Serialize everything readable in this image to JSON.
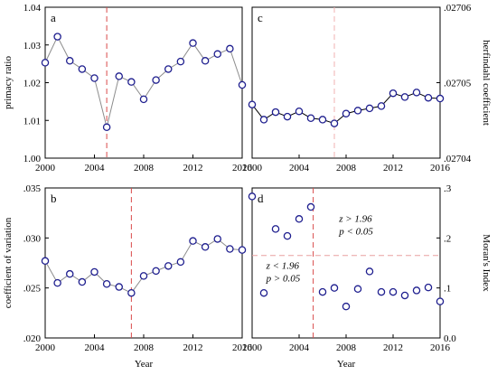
{
  "chart_data": [
    {
      "id": "a",
      "type": "line",
      "panel_label": "a",
      "ylabel": "primacy ratio",
      "xlabel": "",
      "y_axis_side": "left",
      "xlim": [
        2000,
        2016
      ],
      "ylim": [
        1.0,
        1.04
      ],
      "xticks": [
        2000,
        2004,
        2008,
        2012,
        2016
      ],
      "xtick_labels": [
        "2000",
        "2004",
        "2008",
        "2012",
        "2016"
      ],
      "yticks": [
        1.0,
        1.01,
        1.02,
        1.03,
        1.04
      ],
      "ytick_labels": [
        "1.00",
        "1.01",
        "1.02",
        "1.03",
        "1.04"
      ],
      "series": [
        {
          "x": [
            2000,
            2001,
            2002,
            2003,
            2004,
            2005,
            2006,
            2007,
            2008,
            2009,
            2010,
            2011,
            2012,
            2013,
            2014,
            2015,
            2016
          ],
          "values": [
            1.0253,
            1.0322,
            1.0258,
            1.0236,
            1.0212,
            1.0082,
            1.0217,
            1.0202,
            1.0156,
            1.0207,
            1.0236,
            1.0256,
            1.0305,
            1.0258,
            1.0276,
            1.029,
            1.0194
          ]
        }
      ],
      "line_color": "#8c8c8c",
      "vlines": [
        2005
      ],
      "hlines": [],
      "grid": false,
      "legend": "none"
    },
    {
      "id": "b",
      "type": "line",
      "panel_label": "b",
      "ylabel": "coefficient of variation",
      "xlabel": "Year",
      "y_axis_side": "left",
      "xlim": [
        2000,
        2016
      ],
      "ylim": [
        0.02,
        0.035
      ],
      "xticks": [
        2000,
        2004,
        2008,
        2012,
        2016
      ],
      "xtick_labels": [
        "2000",
        "2004",
        "2008",
        "2012",
        "2016"
      ],
      "yticks": [
        0.02,
        0.025,
        0.03,
        0.035
      ],
      "ytick_labels": [
        ".020",
        ".025",
        ".030",
        ".035"
      ],
      "series": [
        {
          "x": [
            2000,
            2001,
            2002,
            2003,
            2004,
            2005,
            2006,
            2007,
            2008,
            2009,
            2010,
            2011,
            2012,
            2013,
            2014,
            2015,
            2016
          ],
          "values": [
            0.0277,
            0.0255,
            0.0264,
            0.0256,
            0.0266,
            0.0254,
            0.0251,
            0.0245,
            0.0262,
            0.0267,
            0.0272,
            0.0276,
            0.0297,
            0.0291,
            0.0299,
            0.0289,
            0.0288
          ]
        }
      ],
      "line_color": "#8c8c8c",
      "vlines": [
        2007
      ],
      "hlines": [],
      "grid": false,
      "legend": "none"
    },
    {
      "id": "c",
      "type": "line",
      "panel_label": "c",
      "ylabel": "herfindahl coefficient",
      "xlabel": "",
      "y_axis_side": "right",
      "xlim": [
        2000,
        2016
      ],
      "ylim": [
        0.02704,
        0.02706
      ],
      "xticks": [
        2000,
        2004,
        2008,
        2012,
        2016
      ],
      "xtick_labels": [
        "2000",
        "2004",
        "2008",
        "2012",
        "2016"
      ],
      "yticks": [
        0.02704,
        0.02705,
        0.02706
      ],
      "ytick_labels": [
        ".02704",
        ".02705",
        ".02706"
      ],
      "series": [
        {
          "x": [
            2000,
            2001,
            2002,
            2003,
            2004,
            2005,
            2006,
            2007,
            2008,
            2009,
            2010,
            2011,
            2012,
            2013,
            2014,
            2015,
            2016
          ],
          "values": [
            0.0270471,
            0.0270451,
            0.0270461,
            0.0270455,
            0.0270462,
            0.0270453,
            0.0270451,
            0.0270446,
            0.0270459,
            0.0270463,
            0.0270466,
            0.0270469,
            0.0270486,
            0.0270481,
            0.0270487,
            0.027048,
            0.0270479
          ]
        }
      ],
      "line_color": "#000000",
      "vlines": [
        2007
      ],
      "hlines": [],
      "grid": false,
      "legend": "none"
    },
    {
      "id": "d",
      "type": "scatter",
      "panel_label": "d",
      "ylabel": "Moran's Index",
      "xlabel": "Year",
      "y_axis_side": "right",
      "xlim": [
        2000,
        2016
      ],
      "ylim": [
        0.0,
        0.3
      ],
      "xticks": [
        2000,
        2004,
        2008,
        2012,
        2016
      ],
      "xtick_labels": [
        "2000",
        "2004",
        "2008",
        "2012",
        "2016"
      ],
      "yticks": [
        0.0,
        0.1,
        0.2,
        0.3
      ],
      "ytick_labels": [
        "0.0",
        ".1",
        ".2",
        ".3"
      ],
      "series": [
        {
          "x": [
            2000,
            2001,
            2002,
            2003,
            2004,
            2005,
            2006,
            2007,
            2008,
            2009,
            2010,
            2011,
            2012,
            2013,
            2014,
            2015,
            2016
          ],
          "values": [
            0.283,
            0.09,
            0.218,
            0.204,
            0.238,
            0.262,
            0.092,
            0.1,
            0.063,
            0.098,
            0.133,
            0.092,
            0.092,
            0.085,
            0.095,
            0.101,
            0.073
          ]
        }
      ],
      "line_color": "none",
      "vlines": [
        2005.2
      ],
      "hlines": [
        0.165
      ],
      "annotations": [
        {
          "lines": [
            "z > 1.96",
            "p < 0.05"
          ],
          "x": 2007.4,
          "y": 0.232
        },
        {
          "lines": [
            "z < 1.96",
            "p > 0.05"
          ],
          "x": 2001.2,
          "y": 0.138
        }
      ],
      "grid": false,
      "legend": "none"
    }
  ]
}
